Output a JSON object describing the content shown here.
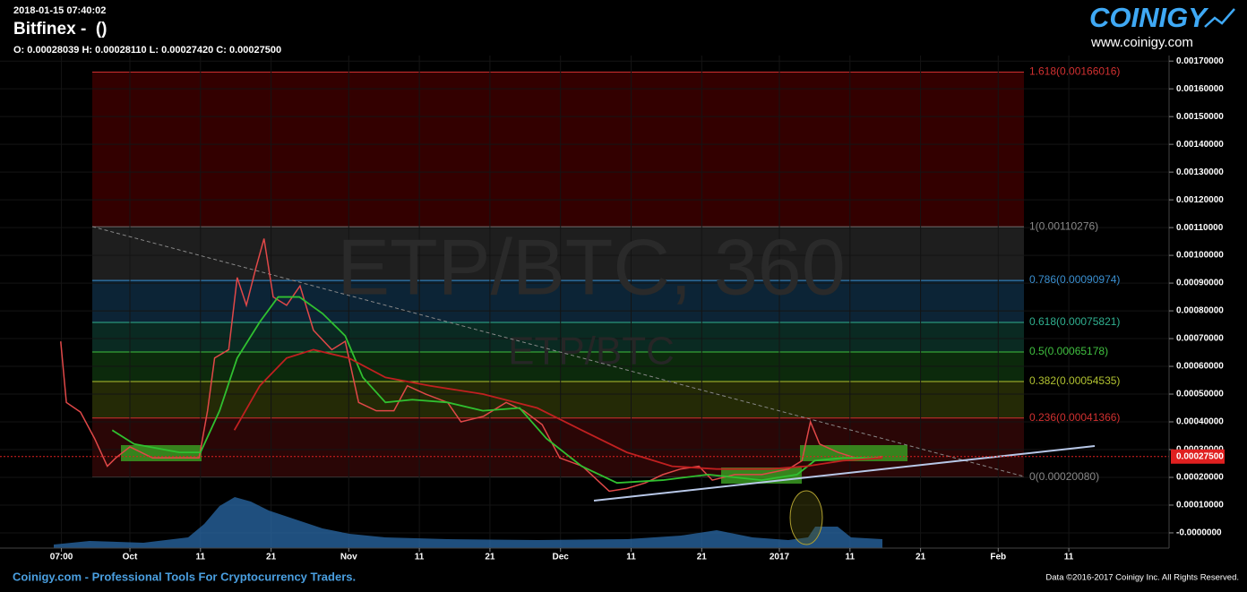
{
  "header": {
    "timestamp": "2018-01-15 07:40:02",
    "exchange": "Bitfinex -  ()",
    "ohlc": "O: 0.00028039 H: 0.00028110 L: 0.00027420 C: 0.00027500"
  },
  "logo": {
    "brand": "COINIGY",
    "url": "www.coinigy.com"
  },
  "chart_data": {
    "type": "line",
    "watermark": "ETP/BTC, 360",
    "watermark_sub": "ETP/BTC",
    "xlim": [
      -18.4,
      147.2
    ],
    "ylim": [
      -5.5e-05,
      0.00172
    ],
    "xticks": [
      {
        "value": -9.7,
        "label": "07:00"
      },
      {
        "value": 0,
        "label": "Oct"
      },
      {
        "value": 10,
        "label": "11"
      },
      {
        "value": 20,
        "label": "21"
      },
      {
        "value": 31,
        "label": "Nov"
      },
      {
        "value": 41,
        "label": "11"
      },
      {
        "value": 51,
        "label": "21"
      },
      {
        "value": 61,
        "label": "Dec"
      },
      {
        "value": 71,
        "label": "11"
      },
      {
        "value": 81,
        "label": "21"
      },
      {
        "value": 92,
        "label": "2017"
      },
      {
        "value": 102,
        "label": "11"
      },
      {
        "value": 112,
        "label": "21"
      },
      {
        "value": 123,
        "label": "Feb"
      },
      {
        "value": 133,
        "label": "11"
      }
    ],
    "yticks": [
      {
        "value": 0,
        "label": "-0.0000000"
      },
      {
        "value": 0.0001,
        "label": "0.00010000"
      },
      {
        "value": 0.0002,
        "label": "0.00020000"
      },
      {
        "value": 0.0003,
        "label": "0.00030000"
      },
      {
        "value": 0.0004,
        "label": "0.00040000"
      },
      {
        "value": 0.0005,
        "label": "0.00050000"
      },
      {
        "value": 0.0006,
        "label": "0.00060000"
      },
      {
        "value": 0.0007,
        "label": "0.00070000"
      },
      {
        "value": 0.0008,
        "label": "0.00080000"
      },
      {
        "value": 0.0009,
        "label": "0.00090000"
      },
      {
        "value": 0.001,
        "label": "0.00100000"
      },
      {
        "value": 0.0011,
        "label": "0.00110000"
      },
      {
        "value": 0.0012,
        "label": "0.00120000"
      },
      {
        "value": 0.0013,
        "label": "0.00130000"
      },
      {
        "value": 0.0014,
        "label": "0.00140000"
      },
      {
        "value": 0.0015,
        "label": "0.00150000"
      },
      {
        "value": 0.0016,
        "label": "0.00160000"
      },
      {
        "value": 0.0017,
        "label": "0.00170000"
      }
    ],
    "last_price": {
      "value": 0.000275,
      "label": "0.00027500"
    },
    "fib_levels": [
      {
        "value": 0.00166016,
        "label": "1.618(0.00166016)",
        "color": "#d03030"
      },
      {
        "value": 0.00110276,
        "label": "1(0.00110276)",
        "color": "#888888"
      },
      {
        "value": 0.00090974,
        "label": "0.786(0.00090974)",
        "color": "#3a8fd0"
      },
      {
        "value": 0.00075821,
        "label": "0.618(0.00075821)",
        "color": "#30b090"
      },
      {
        "value": 0.00065178,
        "label": "0.5(0.00065178)",
        "color": "#40c040"
      },
      {
        "value": 0.00054535,
        "label": "0.382(0.00054535)",
        "color": "#b0c030"
      },
      {
        "value": 0.00041366,
        "label": "0.236(0.00041366)",
        "color": "#d03030"
      },
      {
        "value": 0.0002008,
        "label": "0(0.00020080)",
        "color": "#888888"
      }
    ],
    "zone_colors": [
      "#330000",
      "#1e1e1e",
      "#0c2436",
      "#0a2a22",
      "#0c2a0c",
      "#242a06",
      "#2a0606"
    ],
    "series": [
      {
        "color": "#e04848",
        "x": [
          -9.8,
          -9,
          -7,
          -5,
          -3.2,
          -2,
          0,
          3.2,
          7,
          9.8,
          11,
          12,
          14,
          15.2,
          16.5,
          17.8,
          19,
          20.3,
          22.2,
          24.1,
          26,
          28.6,
          30.5,
          32.4,
          34.9,
          37.4,
          39.3,
          41.9,
          45,
          46.9,
          50.1,
          53.3,
          55.8,
          58.4,
          60.9,
          64.1,
          67.9,
          70.4,
          73,
          75.5,
          78,
          80.6,
          82.5,
          85.7,
          89.5,
          93.3,
          95.2,
          96.4,
          97.7,
          100.3,
          102.8,
          105.3,
          106.6
        ],
        "values": [
          0.00069,
          0.00047,
          0.000435,
          0.00034,
          0.00024,
          0.00027,
          0.00031,
          0.00027,
          0.00027,
          0.00027,
          0.00044,
          0.00063,
          0.00066,
          0.00092,
          0.00082,
          0.00095,
          0.00106,
          0.00085,
          0.00082,
          0.00089,
          0.00073,
          0.00066,
          0.00069,
          0.00047,
          0.00044,
          0.00044,
          0.00053,
          0.0005,
          0.00047,
          0.0004,
          0.00042,
          0.00047,
          0.00044,
          0.00039,
          0.00027,
          0.00024,
          0.00015,
          0.00016,
          0.00018,
          0.00021,
          0.00023,
          0.00024,
          0.00019,
          0.00021,
          0.00021,
          0.00023,
          0.00026,
          0.0004,
          0.00032,
          0.00029,
          0.00027,
          0.00027,
          0.000275
        ]
      },
      {
        "color": "#30c030",
        "x": [
          -2.5,
          0.6,
          7,
          10,
          12.7,
          15.2,
          18.4,
          21,
          24,
          27.3,
          30.5,
          33,
          36.2,
          40,
          45,
          50,
          55.2,
          59,
          64,
          69,
          75.5,
          81.9,
          89.5,
          94.5,
          97,
          101,
          106.6
        ],
        "values": [
          0.00037,
          0.00032,
          0.00029,
          0.00029,
          0.00044,
          0.00063,
          0.00076,
          0.00085,
          0.00085,
          0.00079,
          0.00071,
          0.00056,
          0.00047,
          0.00048,
          0.00047,
          0.00044,
          0.00045,
          0.00034,
          0.00024,
          0.00018,
          0.00019,
          0.00021,
          0.00019,
          0.00021,
          0.00026,
          0.00027,
          0.00027
        ]
      },
      {
        "color": "#c02020",
        "x": [
          14.8,
          18.4,
          22.2,
          26,
          31,
          36.2,
          42.5,
          50,
          57.7,
          64,
          70.4,
          76.8,
          83.1,
          90.7,
          95.8,
          101,
          106.6
        ],
        "values": [
          0.00037,
          0.00053,
          0.00063,
          0.00066,
          0.00063,
          0.00056,
          0.00053,
          0.0005,
          0.00045,
          0.00037,
          0.00029,
          0.00024,
          0.00023,
          0.00023,
          0.00024,
          0.00026,
          0.00027
        ]
      }
    ]
  },
  "footer": {
    "tagline": "Coinigy.com - Professional Tools For Cryptocurrency Traders.",
    "copyright": "Data ©2016-2017 Coinigy Inc. All Rights Reserved."
  }
}
